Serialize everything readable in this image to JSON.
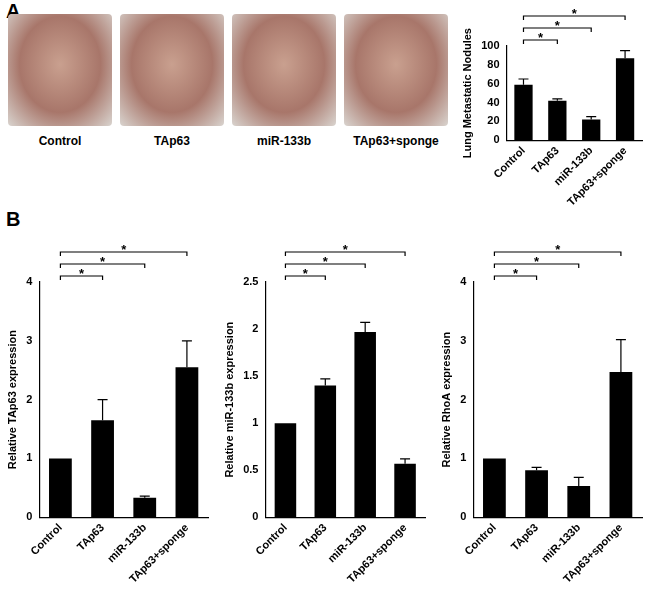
{
  "panel_labels": [
    "A",
    "B"
  ],
  "images": {
    "labels": [
      "Control",
      "TAp63",
      "miR-133b",
      "TAp63+sponge"
    ]
  },
  "chart_data": [
    {
      "type": "bar",
      "y_label": "Lung Metastatic Nodules",
      "categories": [
        "Control",
        "TAp63",
        "miR-133b",
        "TAp63+sponge"
      ],
      "values": [
        59,
        42,
        22,
        87
      ],
      "errors": [
        6,
        2,
        3,
        8
      ],
      "color": "#000000",
      "ylim": [
        0,
        100
      ],
      "yticks": [
        0,
        20,
        40,
        60,
        80,
        100
      ],
      "grid": false,
      "significance": [
        {
          "from": "Control",
          "to": "TAp63",
          "label": "*"
        },
        {
          "from": "Control",
          "to": "miR-133b",
          "label": "*"
        },
        {
          "from": "Control",
          "to": "TAp63+sponge",
          "label": "*"
        }
      ]
    },
    {
      "type": "bar",
      "y_label": "Relative TAp63 expression",
      "categories": [
        "Control",
        "TAp63",
        "miR-133b",
        "TAp63+sponge"
      ],
      "values": [
        1,
        1.65,
        0.33,
        2.55
      ],
      "errors": [
        0,
        0.35,
        0.03,
        0.45
      ],
      "color": "#000000",
      "ylim": [
        0,
        4
      ],
      "yticks": [
        0,
        1,
        2,
        3,
        4
      ],
      "grid": false,
      "significance": [
        {
          "from": "Control",
          "to": "TAp63",
          "label": "*"
        },
        {
          "from": "Control",
          "to": "miR-133b",
          "label": "*"
        },
        {
          "from": "Control",
          "to": "TAp63+sponge",
          "label": "*"
        }
      ]
    },
    {
      "type": "bar",
      "y_label": "Relative miR-133b expression",
      "categories": [
        "Control",
        "TAp63",
        "miR-133b",
        "TAp63+sponge"
      ],
      "values": [
        1,
        1.4,
        1.97,
        0.57
      ],
      "errors": [
        0,
        0.07,
        0.1,
        0.05
      ],
      "color": "#000000",
      "ylim": [
        0,
        2.5
      ],
      "yticks": [
        0,
        0.5,
        1,
        1.5,
        2,
        2.5
      ],
      "grid": false,
      "significance": [
        {
          "from": "Control",
          "to": "TAp63",
          "label": "*"
        },
        {
          "from": "Control",
          "to": "miR-133b",
          "label": "*"
        },
        {
          "from": "Control",
          "to": "TAp63+sponge",
          "label": "*"
        }
      ]
    },
    {
      "type": "bar",
      "y_label": "Relative RhoA expression",
      "categories": [
        "Control",
        "TAp63",
        "miR-133b",
        "TAp63+sponge"
      ],
      "values": [
        1,
        0.8,
        0.53,
        2.47
      ],
      "errors": [
        0,
        0.05,
        0.15,
        0.55
      ],
      "color": "#000000",
      "ylim": [
        0,
        4
      ],
      "yticks": [
        0,
        1,
        2,
        3,
        4
      ],
      "grid": false,
      "significance": [
        {
          "from": "Control",
          "to": "TAp63",
          "label": "*"
        },
        {
          "from": "Control",
          "to": "miR-133b",
          "label": "*"
        },
        {
          "from": "Control",
          "to": "TAp63+sponge",
          "label": "*"
        }
      ]
    }
  ]
}
